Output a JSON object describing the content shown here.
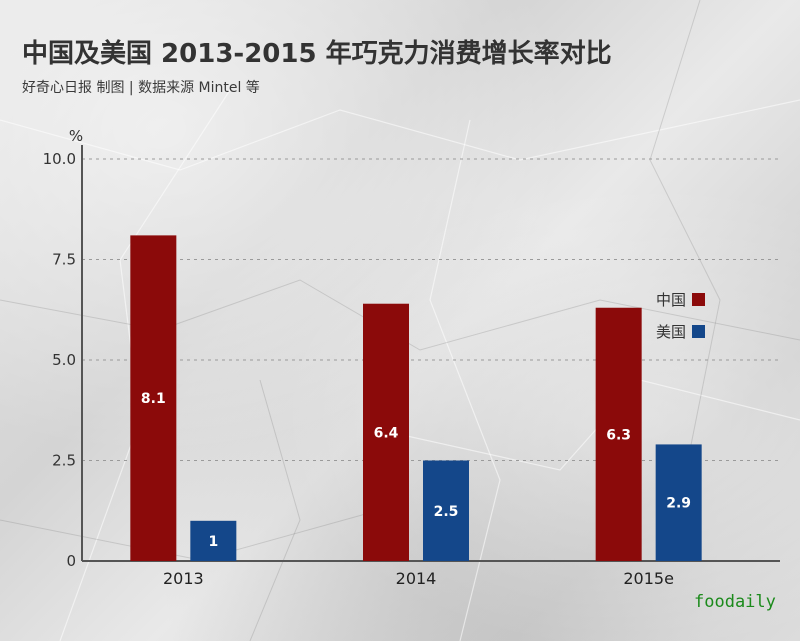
{
  "chart_data": {
    "type": "bar",
    "title": "中国及美国 2013-2015 年巧克力消费增长率对比",
    "subtitle": "好奇心日报 制图 | 数据来源 Mintel 等",
    "ylabel": "%",
    "xlabel": "",
    "categories": [
      "2013",
      "2014",
      "2015e"
    ],
    "series": [
      {
        "name": "中国",
        "values": [
          8.1,
          6.4,
          6.3
        ],
        "labels": [
          "8.1",
          "6.4",
          "6.3"
        ],
        "color": "#8b0a0a"
      },
      {
        "name": "美国",
        "values": [
          1,
          2.5,
          2.9
        ],
        "labels": [
          "1",
          "2.5",
          "2.9"
        ],
        "color": "#14478a"
      }
    ],
    "yticks": [
      0,
      2.5,
      5,
      7.5,
      10
    ],
    "ytick_labels": [
      "0",
      "2.5",
      "5.0",
      "7.5",
      "10.0"
    ],
    "ylim": [
      0,
      10
    ],
    "grid": true,
    "legend_position": "right"
  },
  "watermark": "foodaily"
}
